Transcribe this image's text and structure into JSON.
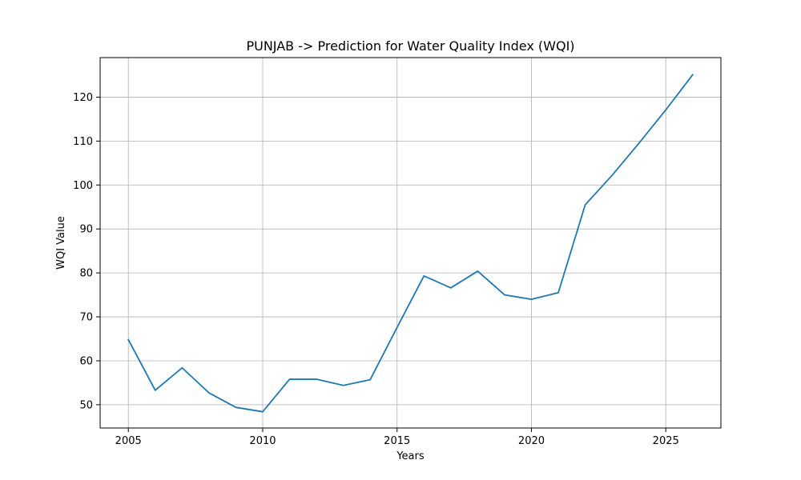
{
  "chart_data": {
    "type": "line",
    "title": "PUNJAB -> Prediction for Water Quality Index (WQI)",
    "xlabel": "Years",
    "ylabel": "WQI Value",
    "xlim": [
      2003.95,
      2027.05
    ],
    "ylim": [
      44.7,
      129.0
    ],
    "xticks": [
      2005,
      2010,
      2015,
      2020,
      2025
    ],
    "yticks": [
      50,
      60,
      70,
      80,
      90,
      100,
      110,
      120
    ],
    "grid": true,
    "colors": {
      "line": "#1f77b4",
      "grid": "#b0b0b0",
      "axes": "#000000"
    },
    "series": [
      {
        "x": [
          2005,
          2006,
          2007,
          2008,
          2009,
          2010,
          2011,
          2012,
          2013,
          2014,
          2015,
          2016,
          2017,
          2018,
          2019,
          2020,
          2021,
          2022,
          2023,
          2024,
          2025,
          2026
        ],
        "values": [
          64.8,
          53.3,
          58.4,
          52.7,
          49.4,
          48.4,
          55.8,
          55.8,
          54.4,
          55.7,
          67.6,
          79.3,
          76.6,
          80.4,
          75.0,
          74.0,
          75.5,
          95.5,
          102.2,
          109.5,
          117.1,
          125.1
        ]
      }
    ]
  }
}
